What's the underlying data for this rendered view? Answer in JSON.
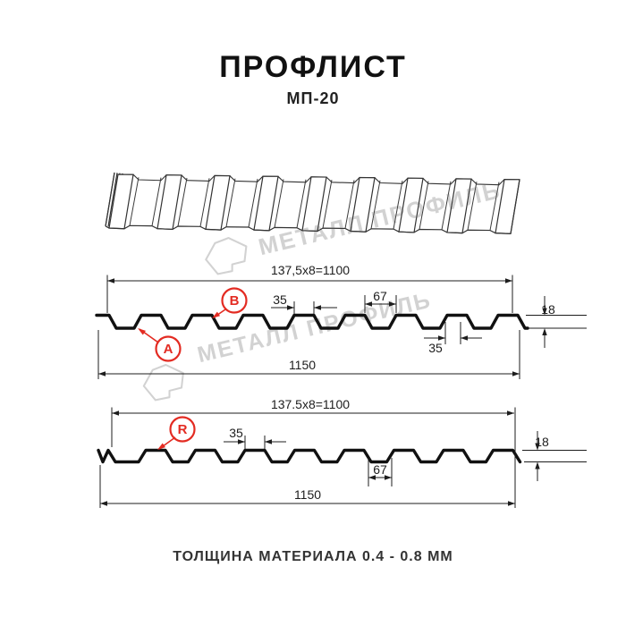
{
  "header": {
    "title": "ПРОФЛИСТ",
    "subtitle": "МП-20"
  },
  "footer": {
    "thickness_note": "ТОЛЩИНА МАТЕРИАЛА 0.4 - 0.8 ММ"
  },
  "watermark": {
    "brand": "МЕТАЛЛ ПРОФИЛЬ",
    "color": "#d2d2d2"
  },
  "colors": {
    "accent_red": "#e32b22",
    "line": "#1d1d1d",
    "watermark_gray": "#d2d2d2"
  },
  "drawing1": {
    "label_a": "A",
    "label_b": "B",
    "dim_pattern": "137,5x8=1100",
    "dim_crest_width": "35",
    "dim_crest_spacing": "67",
    "dim_height": "18",
    "dim_bottom_width": "35",
    "dim_overall": "1150"
  },
  "drawing2": {
    "label_r": "R",
    "dim_pattern": "137.5x8=1100",
    "dim_crest_width": "35",
    "dim_valley_width": "67",
    "dim_height": "18",
    "dim_overall": "1150"
  }
}
